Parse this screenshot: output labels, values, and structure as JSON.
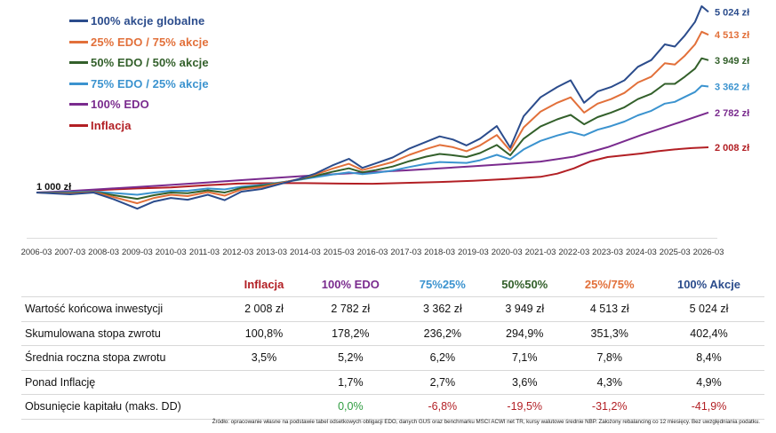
{
  "chart_data": {
    "type": "line",
    "x_ticks": [
      "2006-03",
      "2007-03",
      "2008-03",
      "2009-03",
      "2010-03",
      "2011-03",
      "2012-03",
      "2013-03",
      "2014-03",
      "2015-03",
      "2016-03",
      "2017-03",
      "2018-03",
      "2019-03",
      "2020-03",
      "2021-03",
      "2022-03",
      "2023-03",
      "2024-03",
      "2025-03",
      "2026-03"
    ],
    "xlim": [
      2006.2,
      2026.2
    ],
    "ylim": [
      700,
      5300
    ],
    "start_label": "1 000 zł",
    "grid": false,
    "legend_position": "top-left",
    "series": [
      {
        "name": "100% akcje globalne",
        "color": "#2b4c8c",
        "end_label": "5 024 zł",
        "points": [
          [
            2006.2,
            1000
          ],
          [
            2007.2,
            960
          ],
          [
            2007.9,
            1000
          ],
          [
            2008.5,
            850
          ],
          [
            2009.2,
            640
          ],
          [
            2009.7,
            800
          ],
          [
            2010.2,
            880
          ],
          [
            2010.7,
            840
          ],
          [
            2011.3,
            950
          ],
          [
            2011.8,
            830
          ],
          [
            2012.3,
            1020
          ],
          [
            2012.9,
            1080
          ],
          [
            2013.4,
            1180
          ],
          [
            2014.0,
            1300
          ],
          [
            2014.5,
            1420
          ],
          [
            2015.0,
            1600
          ],
          [
            2015.5,
            1750
          ],
          [
            2015.9,
            1550
          ],
          [
            2016.3,
            1650
          ],
          [
            2016.8,
            1780
          ],
          [
            2017.3,
            1980
          ],
          [
            2017.8,
            2130
          ],
          [
            2018.2,
            2250
          ],
          [
            2018.6,
            2180
          ],
          [
            2019.0,
            2050
          ],
          [
            2019.4,
            2200
          ],
          [
            2019.9,
            2480
          ],
          [
            2020.3,
            2000
          ],
          [
            2020.7,
            2700
          ],
          [
            2021.2,
            3120
          ],
          [
            2021.7,
            3350
          ],
          [
            2022.1,
            3500
          ],
          [
            2022.5,
            3000
          ],
          [
            2022.9,
            3250
          ],
          [
            2023.3,
            3350
          ],
          [
            2023.7,
            3500
          ],
          [
            2024.1,
            3800
          ],
          [
            2024.5,
            3950
          ],
          [
            2024.9,
            4300
          ],
          [
            2025.2,
            4250
          ],
          [
            2025.5,
            4500
          ],
          [
            2025.8,
            4800
          ],
          [
            2026.0,
            5150
          ],
          [
            2026.2,
            5024
          ]
        ]
      },
      {
        "name": "25% EDO / 75% akcje",
        "color": "#e2703a",
        "end_label": "4 513 zł",
        "points": [
          [
            2006.2,
            1000
          ],
          [
            2007.2,
            975
          ],
          [
            2007.9,
            1010
          ],
          [
            2008.5,
            900
          ],
          [
            2009.2,
            760
          ],
          [
            2009.7,
            880
          ],
          [
            2010.2,
            950
          ],
          [
            2010.7,
            920
          ],
          [
            2011.3,
            1010
          ],
          [
            2011.8,
            930
          ],
          [
            2012.3,
            1070
          ],
          [
            2012.9,
            1120
          ],
          [
            2013.4,
            1200
          ],
          [
            2014.0,
            1300
          ],
          [
            2014.5,
            1400
          ],
          [
            2015.0,
            1530
          ],
          [
            2015.5,
            1640
          ],
          [
            2015.9,
            1500
          ],
          [
            2016.3,
            1580
          ],
          [
            2016.8,
            1680
          ],
          [
            2017.3,
            1840
          ],
          [
            2017.8,
            1970
          ],
          [
            2018.2,
            2060
          ],
          [
            2018.6,
            2010
          ],
          [
            2019.0,
            1920
          ],
          [
            2019.4,
            2050
          ],
          [
            2019.9,
            2280
          ],
          [
            2020.3,
            1930
          ],
          [
            2020.7,
            2450
          ],
          [
            2021.2,
            2800
          ],
          [
            2021.7,
            3000
          ],
          [
            2022.1,
            3120
          ],
          [
            2022.5,
            2780
          ],
          [
            2022.9,
            2980
          ],
          [
            2023.3,
            3080
          ],
          [
            2023.7,
            3220
          ],
          [
            2024.1,
            3450
          ],
          [
            2024.5,
            3580
          ],
          [
            2024.9,
            3880
          ],
          [
            2025.2,
            3850
          ],
          [
            2025.5,
            4050
          ],
          [
            2025.8,
            4300
          ],
          [
            2026.0,
            4580
          ],
          [
            2026.2,
            4513
          ]
        ]
      },
      {
        "name": "50% EDO / 50% akcje",
        "color": "#33602b",
        "end_label": "3 949 zł",
        "points": [
          [
            2006.2,
            1000
          ],
          [
            2007.2,
            990
          ],
          [
            2007.9,
            1015
          ],
          [
            2008.5,
            940
          ],
          [
            2009.2,
            860
          ],
          [
            2009.7,
            940
          ],
          [
            2010.2,
            1000
          ],
          [
            2010.7,
            985
          ],
          [
            2011.3,
            1050
          ],
          [
            2011.8,
            1000
          ],
          [
            2012.3,
            1100
          ],
          [
            2012.9,
            1150
          ],
          [
            2013.4,
            1210
          ],
          [
            2014.0,
            1290
          ],
          [
            2014.5,
            1370
          ],
          [
            2015.0,
            1460
          ],
          [
            2015.5,
            1540
          ],
          [
            2015.9,
            1450
          ],
          [
            2016.3,
            1500
          ],
          [
            2016.8,
            1580
          ],
          [
            2017.3,
            1700
          ],
          [
            2017.8,
            1800
          ],
          [
            2018.2,
            1860
          ],
          [
            2018.6,
            1830
          ],
          [
            2019.0,
            1790
          ],
          [
            2019.4,
            1880
          ],
          [
            2019.9,
            2060
          ],
          [
            2020.3,
            1830
          ],
          [
            2020.7,
            2200
          ],
          [
            2021.2,
            2470
          ],
          [
            2021.7,
            2630
          ],
          [
            2022.1,
            2730
          ],
          [
            2022.5,
            2520
          ],
          [
            2022.9,
            2680
          ],
          [
            2023.3,
            2780
          ],
          [
            2023.7,
            2900
          ],
          [
            2024.1,
            3080
          ],
          [
            2024.5,
            3200
          ],
          [
            2024.9,
            3420
          ],
          [
            2025.2,
            3420
          ],
          [
            2025.5,
            3580
          ],
          [
            2025.8,
            3760
          ],
          [
            2026.0,
            3990
          ],
          [
            2026.2,
            3949
          ]
        ]
      },
      {
        "name": "75% EDO / 25% akcje",
        "color": "#3b93cf",
        "end_label": "3 362 zł",
        "points": [
          [
            2006.2,
            1000
          ],
          [
            2007.2,
            1010
          ],
          [
            2007.9,
            1025
          ],
          [
            2008.5,
            990
          ],
          [
            2009.2,
            950
          ],
          [
            2009.7,
            1000
          ],
          [
            2010.2,
            1040
          ],
          [
            2010.7,
            1040
          ],
          [
            2011.3,
            1090
          ],
          [
            2011.8,
            1070
          ],
          [
            2012.3,
            1130
          ],
          [
            2012.9,
            1170
          ],
          [
            2013.4,
            1220
          ],
          [
            2014.0,
            1280
          ],
          [
            2014.5,
            1340
          ],
          [
            2015.0,
            1400
          ],
          [
            2015.5,
            1450
          ],
          [
            2015.9,
            1410
          ],
          [
            2016.3,
            1440
          ],
          [
            2016.8,
            1490
          ],
          [
            2017.3,
            1570
          ],
          [
            2017.8,
            1640
          ],
          [
            2018.2,
            1680
          ],
          [
            2018.6,
            1670
          ],
          [
            2019.0,
            1660
          ],
          [
            2019.4,
            1720
          ],
          [
            2019.9,
            1840
          ],
          [
            2020.3,
            1740
          ],
          [
            2020.7,
            1960
          ],
          [
            2021.2,
            2150
          ],
          [
            2021.7,
            2270
          ],
          [
            2022.1,
            2350
          ],
          [
            2022.5,
            2270
          ],
          [
            2022.9,
            2400
          ],
          [
            2023.3,
            2480
          ],
          [
            2023.7,
            2580
          ],
          [
            2024.1,
            2720
          ],
          [
            2024.5,
            2820
          ],
          [
            2024.9,
            2980
          ],
          [
            2025.2,
            3020
          ],
          [
            2025.5,
            3130
          ],
          [
            2025.8,
            3240
          ],
          [
            2026.0,
            3380
          ],
          [
            2026.2,
            3362
          ]
        ]
      },
      {
        "name": "100% EDO",
        "color": "#7a2b8e",
        "end_label": "2 782 zł",
        "points": [
          [
            2006.2,
            1000
          ],
          [
            2007.2,
            1035
          ],
          [
            2008.2,
            1080
          ],
          [
            2009.2,
            1125
          ],
          [
            2010.2,
            1170
          ],
          [
            2011.2,
            1220
          ],
          [
            2012.2,
            1270
          ],
          [
            2013.2,
            1320
          ],
          [
            2014.2,
            1370
          ],
          [
            2015.2,
            1415
          ],
          [
            2016.2,
            1455
          ],
          [
            2017.2,
            1495
          ],
          [
            2018.2,
            1540
          ],
          [
            2019.2,
            1585
          ],
          [
            2020.2,
            1635
          ],
          [
            2021.2,
            1690
          ],
          [
            2022.2,
            1800
          ],
          [
            2023.2,
            2010
          ],
          [
            2024.2,
            2280
          ],
          [
            2025.2,
            2530
          ],
          [
            2026.2,
            2782
          ]
        ]
      },
      {
        "name": "Inflacja",
        "color": "#b21f24",
        "end_label": "2 008 zł",
        "points": [
          [
            2006.2,
            1000
          ],
          [
            2007.2,
            1015
          ],
          [
            2008.2,
            1060
          ],
          [
            2009.2,
            1090
          ],
          [
            2010.2,
            1115
          ],
          [
            2011.2,
            1160
          ],
          [
            2012.2,
            1200
          ],
          [
            2013.2,
            1210
          ],
          [
            2014.2,
            1210
          ],
          [
            2015.2,
            1200
          ],
          [
            2016.2,
            1195
          ],
          [
            2017.2,
            1215
          ],
          [
            2018.2,
            1235
          ],
          [
            2019.2,
            1260
          ],
          [
            2020.2,
            1300
          ],
          [
            2021.2,
            1350
          ],
          [
            2021.7,
            1420
          ],
          [
            2022.2,
            1540
          ],
          [
            2022.7,
            1700
          ],
          [
            2023.2,
            1790
          ],
          [
            2023.7,
            1830
          ],
          [
            2024.2,
            1870
          ],
          [
            2024.7,
            1920
          ],
          [
            2025.2,
            1960
          ],
          [
            2025.7,
            1990
          ],
          [
            2026.2,
            2008
          ]
        ]
      }
    ]
  },
  "table": {
    "headers": [
      {
        "label": "Inflacja",
        "color": "#b21f24"
      },
      {
        "label": "100% EDO",
        "color": "#7a2b8e"
      },
      {
        "label": "75%25%",
        "color": "#3b93cf"
      },
      {
        "label": "50%50%",
        "color": "#33602b"
      },
      {
        "label": "25%/75%",
        "color": "#e2703a"
      },
      {
        "label": "100% Akcje",
        "color": "#2b4c8c"
      }
    ],
    "rows": [
      {
        "label": "Wartość końcowa inwestycji",
        "values": [
          "2 008 zł",
          "2 782 zł",
          "3 362 zł",
          "3 949 zł",
          "4 513 zł",
          "5 024 zł"
        ]
      },
      {
        "label": "Skumulowana stopa zwrotu",
        "values": [
          "100,8%",
          "178,2%",
          "236,2%",
          "294,9%",
          "351,3%",
          "402,4%"
        ]
      },
      {
        "label": "Średnia roczna stopa zwrotu",
        "values": [
          "3,5%",
          "5,2%",
          "6,2%",
          "7,1%",
          "7,8%",
          "8,4%"
        ]
      },
      {
        "label": "Ponad Inflację",
        "values": [
          "",
          "1,7%",
          "2,7%",
          "3,6%",
          "4,3%",
          "4,9%"
        ]
      },
      {
        "label": "Obsunięcie kapitału (maks. DD)",
        "values": [
          "",
          "0,0%",
          "-6,8%",
          "-19,5%",
          "-31,2%",
          "-41,9%"
        ]
      }
    ],
    "positive_color": "#2e9c3f",
    "negative_color": "#b21f24"
  },
  "source_note": "Źródło: opracowanie własne na podstawie tabel odsetkowych obligacji EDO, danych GUS oraz benchmarku MSCI ACWI net TR, kursy walutowe średnie NBP. Założony rebalancing co 12 miesięcy. Bez uwzględniania podatku."
}
